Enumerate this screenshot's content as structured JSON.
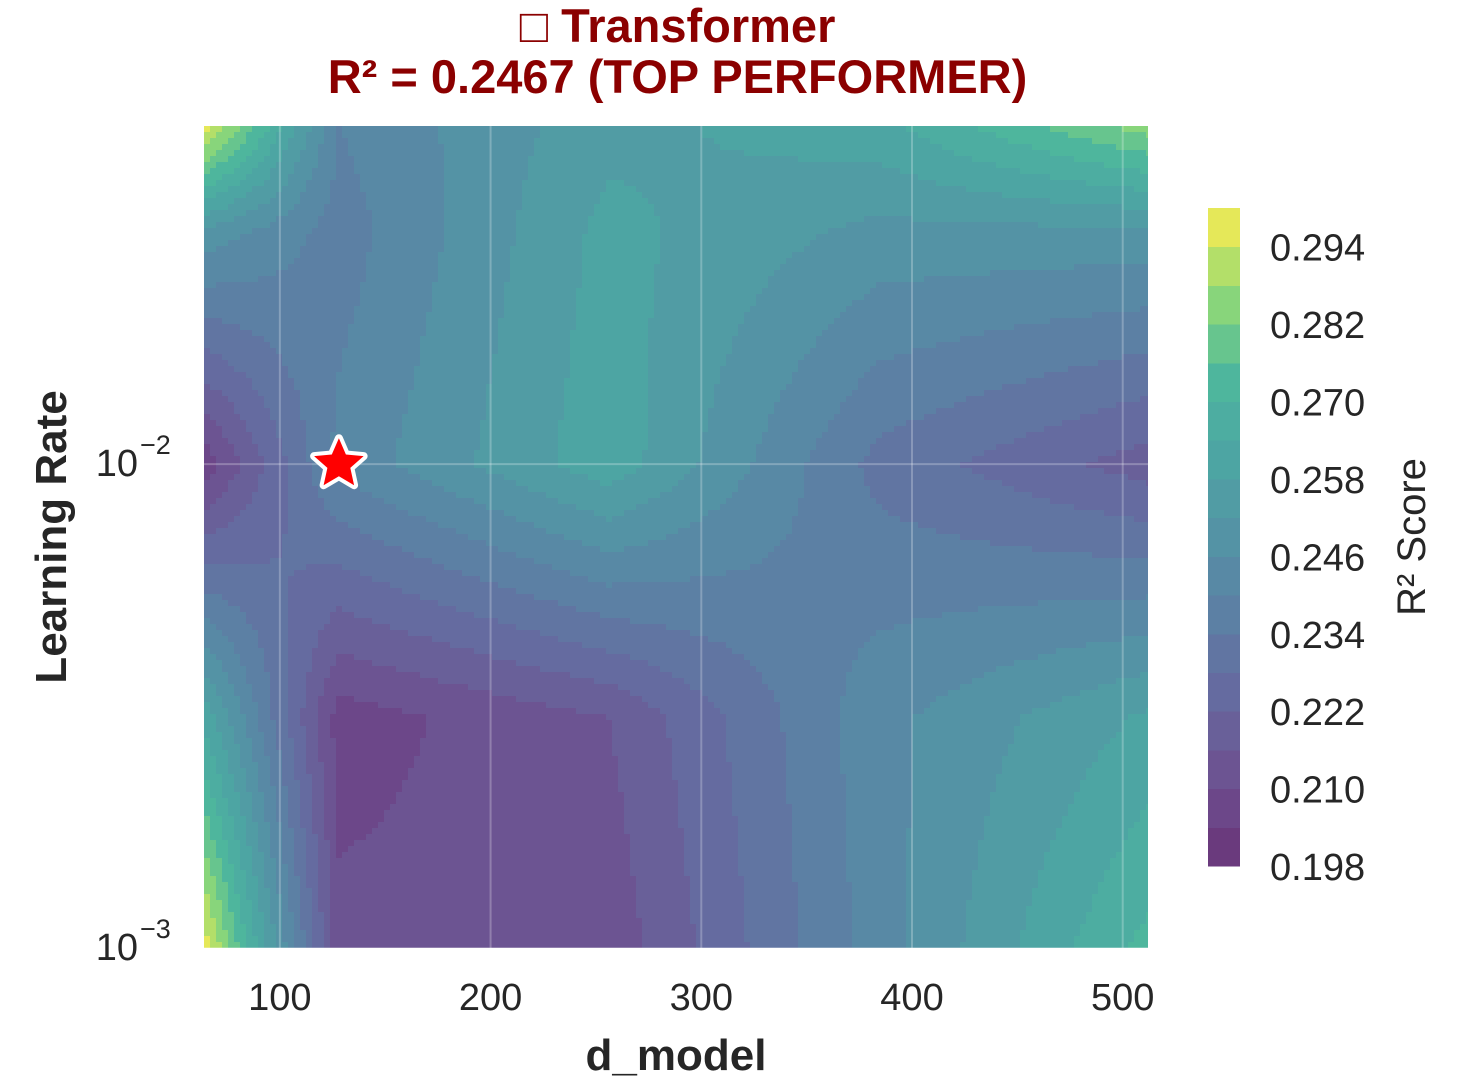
{
  "chart_data": {
    "type": "contour",
    "title": "□ Transformer",
    "subtitle": "R² = 0.2467 (TOP PERFORMER)",
    "xlabel": "d_model",
    "ylabel": "Learning Rate",
    "xscale": "linear",
    "yscale": "log",
    "xlim": [
      64,
      512
    ],
    "ylim": [
      0.001,
      0.05
    ],
    "x_ticks": [
      {
        "value": 100,
        "label": "100"
      },
      {
        "value": 200,
        "label": "200"
      },
      {
        "value": 300,
        "label": "300"
      },
      {
        "value": 400,
        "label": "400"
      },
      {
        "value": 500,
        "label": "500"
      }
    ],
    "y_ticks": [
      {
        "value": 0.001,
        "base": "10",
        "exp": "−3"
      },
      {
        "value": 0.01,
        "base": "10",
        "exp": "−2"
      }
    ],
    "x": [
      64,
      128,
      256,
      384,
      512
    ],
    "y": [
      0.001,
      0.003,
      0.01,
      0.03,
      0.05
    ],
    "z": [
      [
        0.298,
        0.212,
        0.212,
        0.243,
        0.272
      ],
      [
        0.262,
        0.207,
        0.216,
        0.244,
        0.259
      ],
      [
        0.206,
        0.242,
        0.262,
        0.232,
        0.219
      ],
      [
        0.25,
        0.237,
        0.26,
        0.25,
        0.25
      ],
      [
        0.298,
        0.24,
        0.256,
        0.262,
        0.285
      ]
    ],
    "best_point": {
      "x": 128,
      "y": 0.01,
      "marker": "star",
      "color": "#ff0000"
    },
    "colorbar": {
      "label": "R² Score",
      "min": 0.198,
      "max": 0.3,
      "tick_labels": [
        "0.294",
        "0.282",
        "0.270",
        "0.258",
        "0.246",
        "0.234",
        "0.222",
        "0.210",
        "0.198"
      ],
      "tick_values": [
        0.294,
        0.282,
        0.27,
        0.258,
        0.246,
        0.234,
        0.222,
        0.21,
        0.198
      ]
    },
    "colormap": "viridis",
    "grid": true
  },
  "colors": {
    "title": "#8b0000",
    "text": "#262626"
  }
}
